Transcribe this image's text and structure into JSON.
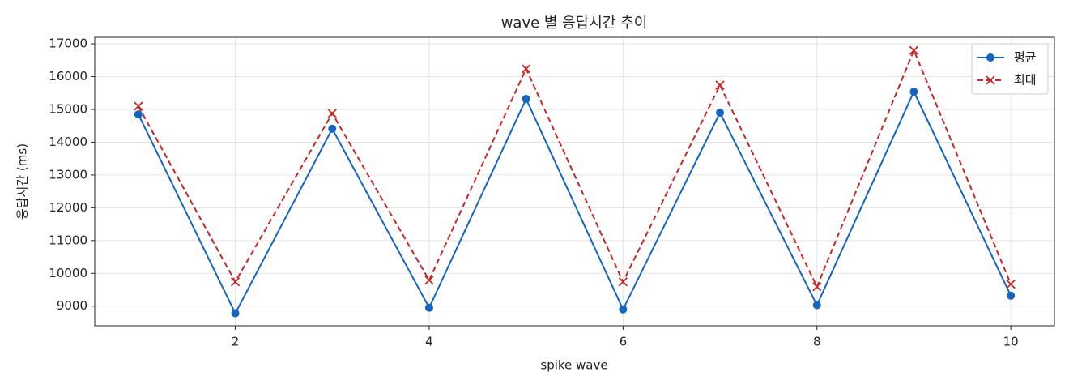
{
  "chart_data": {
    "type": "line",
    "title": "wave 별 응답시간 추이",
    "x_label": "spike wave",
    "y_label": "응답시간 (ms)",
    "x": [
      1,
      2,
      3,
      4,
      5,
      6,
      7,
      8,
      9,
      10
    ],
    "series": [
      {
        "name": "평균",
        "color": "#1565c0",
        "marker": "o",
        "linestyle": "solid",
        "values": [
          14850,
          8780,
          14410,
          8950,
          15320,
          8900,
          14900,
          9030,
          15540,
          9320
        ]
      },
      {
        "name": "최대",
        "color": "#c62828",
        "marker": "x",
        "linestyle": "dashed",
        "values": [
          15100,
          9740,
          14880,
          9790,
          16240,
          9740,
          15740,
          9590,
          16800,
          9670
        ]
      }
    ],
    "xlim": [
      0.55,
      10.45
    ],
    "xticks": [
      2,
      4,
      6,
      8,
      10
    ],
    "ylim": [
      8400,
      17200
    ],
    "yticks": [
      9000,
      10000,
      11000,
      12000,
      13000,
      14000,
      15000,
      16000,
      17000
    ],
    "grid": true,
    "legend": "upper right"
  }
}
